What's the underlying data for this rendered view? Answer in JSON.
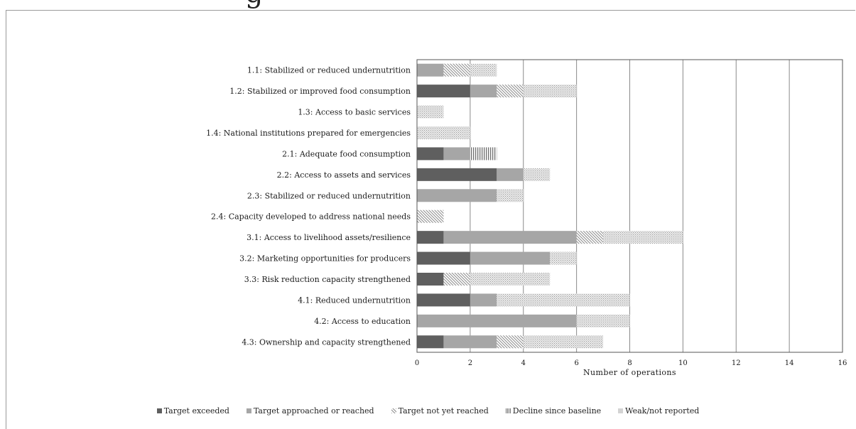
{
  "chart_data": {
    "type": "bar",
    "orientation": "horizontal",
    "stacked": true,
    "title": "",
    "title_fragment": "g",
    "xlabel": "Number  of  operations",
    "ylabel": "",
    "xlim": [
      0,
      16
    ],
    "x_ticks": [
      0,
      2,
      4,
      6,
      8,
      10,
      12,
      14,
      16
    ],
    "grid": "vertical",
    "legend_position": "bottom",
    "categories": [
      "1.1: Stabilized or reduced undernutrition",
      "1.2: Stabilized or improved food consumption",
      "1.3: Access to basic services",
      "1.4: National institutions prepared for emergencies",
      "2.1: Adequate food consumption",
      "2.2: Access to assets and services",
      "2.3: Stabilized or reduced undernutrition",
      "2.4: Capacity developed to address national needs",
      "3.1: Access to livelihood assets/resilience",
      "3.2: Marketing opportunities for producers",
      "3.3: Risk reduction capacity strengthened",
      "4.1: Reduced undernutrition",
      "4.2: Access to education",
      "4.3: Ownership and capacity strengthened"
    ],
    "series": [
      {
        "name": "Target exceeded",
        "color": "#5f5f5f",
        "pattern": "solid",
        "values": [
          0,
          2,
          0,
          0,
          1,
          3,
          0,
          0,
          1,
          2,
          1,
          2,
          0,
          1
        ]
      },
      {
        "name": "Target approached or reached",
        "color": "#a6a6a6",
        "pattern": "solid",
        "values": [
          1,
          1,
          0,
          0,
          1,
          1,
          3,
          0,
          5,
          3,
          0,
          1,
          6,
          2
        ]
      },
      {
        "name": "Target not yet reached",
        "color": "#8c8c8c",
        "pattern": "diagonal",
        "values": [
          1,
          1,
          0,
          0,
          0,
          0,
          0,
          1,
          1,
          0,
          1,
          0,
          0,
          1
        ]
      },
      {
        "name": "Decline since baseline",
        "color": "#6e6e6e",
        "pattern": "vertical",
        "values": [
          0,
          0,
          0,
          0,
          1,
          0,
          0,
          0,
          0,
          0,
          0,
          0,
          0,
          0
        ]
      },
      {
        "name": "Weak/not reported",
        "color": "#bdbdbd",
        "pattern": "dotted",
        "values": [
          1,
          2,
          1,
          2,
          0,
          1,
          1,
          0,
          3,
          1,
          3,
          5,
          2,
          3
        ]
      }
    ]
  }
}
